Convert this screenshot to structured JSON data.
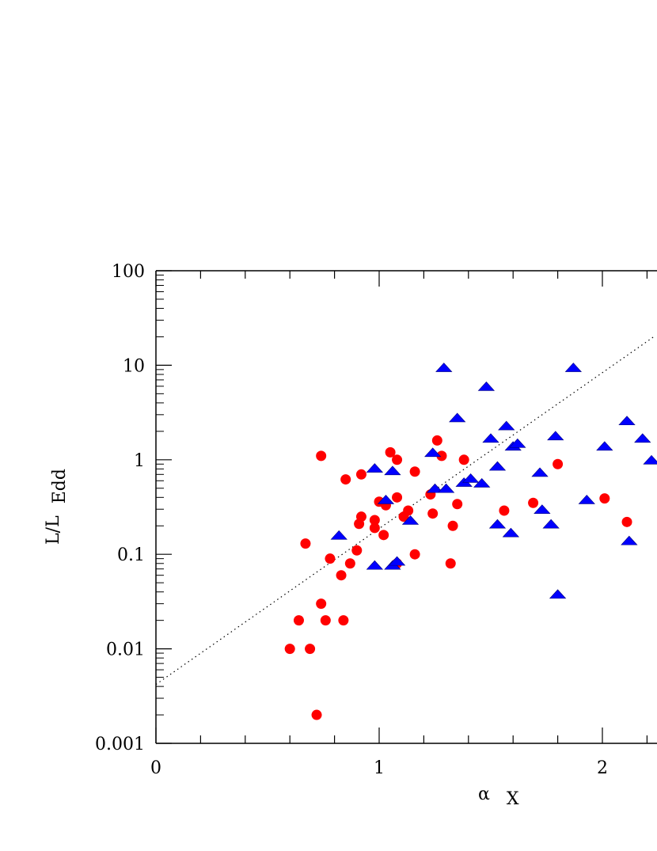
{
  "chart_data": {
    "type": "scatter",
    "title": "",
    "xlabel": {
      "symbol": "α",
      "subscript": "X"
    },
    "ylabel": {
      "base": "L/L",
      "subscript": "Edd"
    },
    "x_scale": "linear",
    "y_scale": "log",
    "xlim": [
      0,
      2.23
    ],
    "ylim": [
      0.001,
      100
    ],
    "x_tick_labels": [
      "0",
      "1",
      "2"
    ],
    "y_tick_labels": [
      "0.001",
      "0.01",
      "0.1",
      "1",
      "10",
      "100"
    ],
    "grid": false,
    "legend": "none",
    "colors": {
      "circles": "#ff0000",
      "triangles": "#0000ff",
      "fit_line": "#000000"
    },
    "fit_line": {
      "style": "dotted",
      "points": [
        [
          0,
          0.0042
        ],
        [
          2.23,
          20
        ]
      ]
    },
    "series": [
      {
        "marker": "circle",
        "points": [
          [
            0.6,
            0.01
          ],
          [
            0.64,
            0.02
          ],
          [
            0.67,
            0.13
          ],
          [
            0.69,
            0.01
          ],
          [
            0.72,
            0.002
          ],
          [
            0.74,
            0.03
          ],
          [
            0.74,
            1.1
          ],
          [
            0.76,
            0.02
          ],
          [
            0.78,
            0.09
          ],
          [
            0.83,
            0.06
          ],
          [
            0.84,
            0.02
          ],
          [
            0.85,
            0.62
          ],
          [
            0.87,
            0.08
          ],
          [
            0.9,
            0.11
          ],
          [
            0.91,
            0.21
          ],
          [
            0.92,
            0.25
          ],
          [
            0.92,
            0.7
          ],
          [
            0.98,
            0.23
          ],
          [
            0.98,
            0.19
          ],
          [
            1.0,
            0.36
          ],
          [
            1.02,
            0.16
          ],
          [
            1.03,
            0.33
          ],
          [
            1.05,
            1.2
          ],
          [
            1.08,
            1.0
          ],
          [
            1.08,
            0.4
          ],
          [
            1.08,
            0.08
          ],
          [
            1.11,
            0.25
          ],
          [
            1.13,
            0.29
          ],
          [
            1.16,
            0.75
          ],
          [
            1.16,
            0.1
          ],
          [
            1.23,
            0.43
          ],
          [
            1.24,
            0.27
          ],
          [
            1.26,
            1.6
          ],
          [
            1.28,
            1.1
          ],
          [
            1.32,
            0.08
          ],
          [
            1.33,
            0.2
          ],
          [
            1.35,
            0.34
          ],
          [
            1.38,
            1.0
          ],
          [
            1.56,
            0.29
          ],
          [
            1.69,
            0.35
          ],
          [
            1.8,
            0.9
          ],
          [
            2.01,
            0.39
          ],
          [
            2.11,
            0.22
          ]
        ]
      },
      {
        "marker": "triangle",
        "points": [
          [
            0.82,
            0.16
          ],
          [
            0.98,
            0.82
          ],
          [
            0.98,
            0.077
          ],
          [
            1.03,
            0.38
          ],
          [
            1.06,
            0.77
          ],
          [
            1.06,
            0.077
          ],
          [
            1.08,
            0.085
          ],
          [
            1.14,
            0.23
          ],
          [
            1.24,
            1.2
          ],
          [
            1.25,
            0.5
          ],
          [
            1.29,
            9.5
          ],
          [
            1.3,
            0.5
          ],
          [
            1.35,
            2.8
          ],
          [
            1.38,
            0.58
          ],
          [
            1.41,
            0.64
          ],
          [
            1.46,
            0.57
          ],
          [
            1.48,
            6.0
          ],
          [
            1.5,
            1.7
          ],
          [
            1.53,
            0.86
          ],
          [
            1.53,
            0.21
          ],
          [
            1.57,
            2.3
          ],
          [
            1.59,
            0.17
          ],
          [
            1.6,
            1.4
          ],
          [
            1.62,
            1.5
          ],
          [
            1.72,
            0.74
          ],
          [
            1.73,
            0.3
          ],
          [
            1.77,
            0.21
          ],
          [
            1.79,
            1.8
          ],
          [
            1.8,
            0.038
          ],
          [
            1.87,
            9.5
          ],
          [
            1.93,
            0.38
          ],
          [
            2.01,
            1.4
          ],
          [
            2.11,
            2.6
          ],
          [
            2.12,
            0.14
          ],
          [
            2.18,
            1.7
          ],
          [
            2.22,
            1.0
          ]
        ]
      }
    ]
  }
}
